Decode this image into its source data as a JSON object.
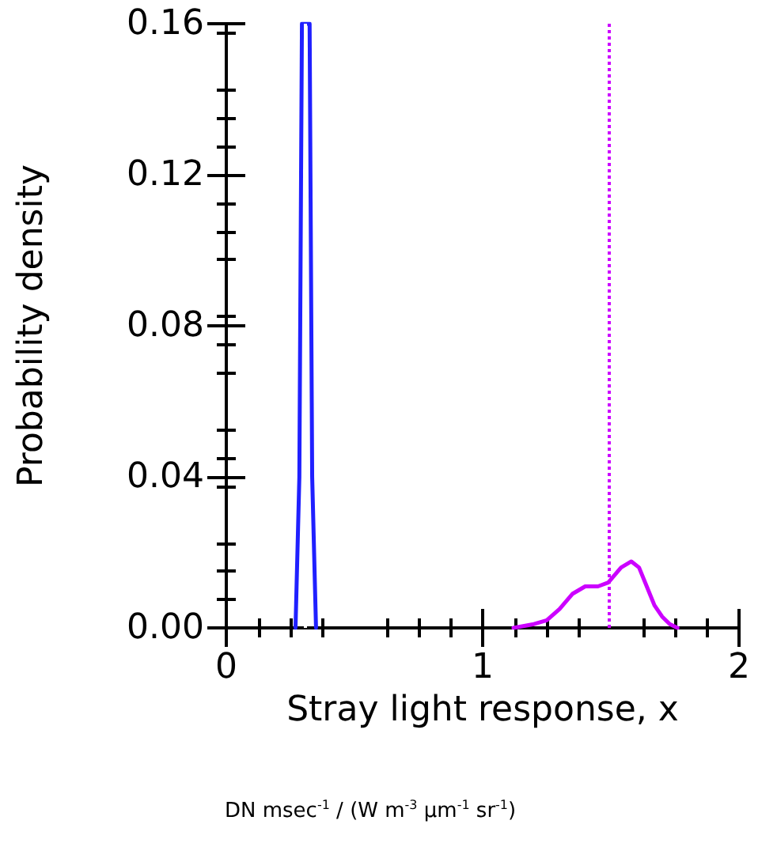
{
  "chart_data": {
    "type": "line",
    "ylabel": "Probability density",
    "xlabel": "Stray light response, x",
    "annotations": [
      "DN msec$^{-1}$ / (W m$^{-3}$ μm$^{-1}$ sr$^{-1}$)"
    ],
    "series": [
      {
        "color": "#2020ff",
        "x": [
          0.27,
          0.285,
          0.295,
          0.325,
          0.335,
          0.35
        ],
        "values": [
          0,
          0.04,
          0.16,
          0.16,
          0.04,
          0
        ]
      },
      {
        "color": "#cc00ff",
        "x": [
          1.12,
          1.2,
          1.25,
          1.3,
          1.35,
          1.4,
          1.45,
          1.49,
          1.54,
          1.58,
          1.61,
          1.64,
          1.67,
          1.7,
          1.73,
          1.76
        ],
        "values": [
          0,
          0.001,
          0.002,
          0.005,
          0.009,
          0.011,
          0.011,
          0.012,
          0.016,
          0.0176,
          0.016,
          0.011,
          0.006,
          0.003,
          0.001,
          0
        ]
      }
    ],
    "xlim": [
      0,
      2
    ],
    "xticks": [
      0,
      1,
      2
    ],
    "ylim": [
      0,
      0.16
    ],
    "yticks": [
      {
        "value": 0,
        "label": "0.00"
      },
      {
        "value": 0.04,
        "label": "0.04"
      },
      {
        "value": 0.08,
        "label": "0.08"
      },
      {
        "value": 0.12,
        "label": "0.12"
      },
      {
        "value": 0.16,
        "label": "0.16"
      }
    ],
    "ref_lines": [
      {
        "axis": "x",
        "value": 0.31,
        "color": "#ffffff",
        "line_style": "dotted"
      },
      {
        "axis": "x",
        "value": 1.49,
        "color": "#cc00ff",
        "line_style": "dotted"
      }
    ],
    "marker": "none"
  }
}
